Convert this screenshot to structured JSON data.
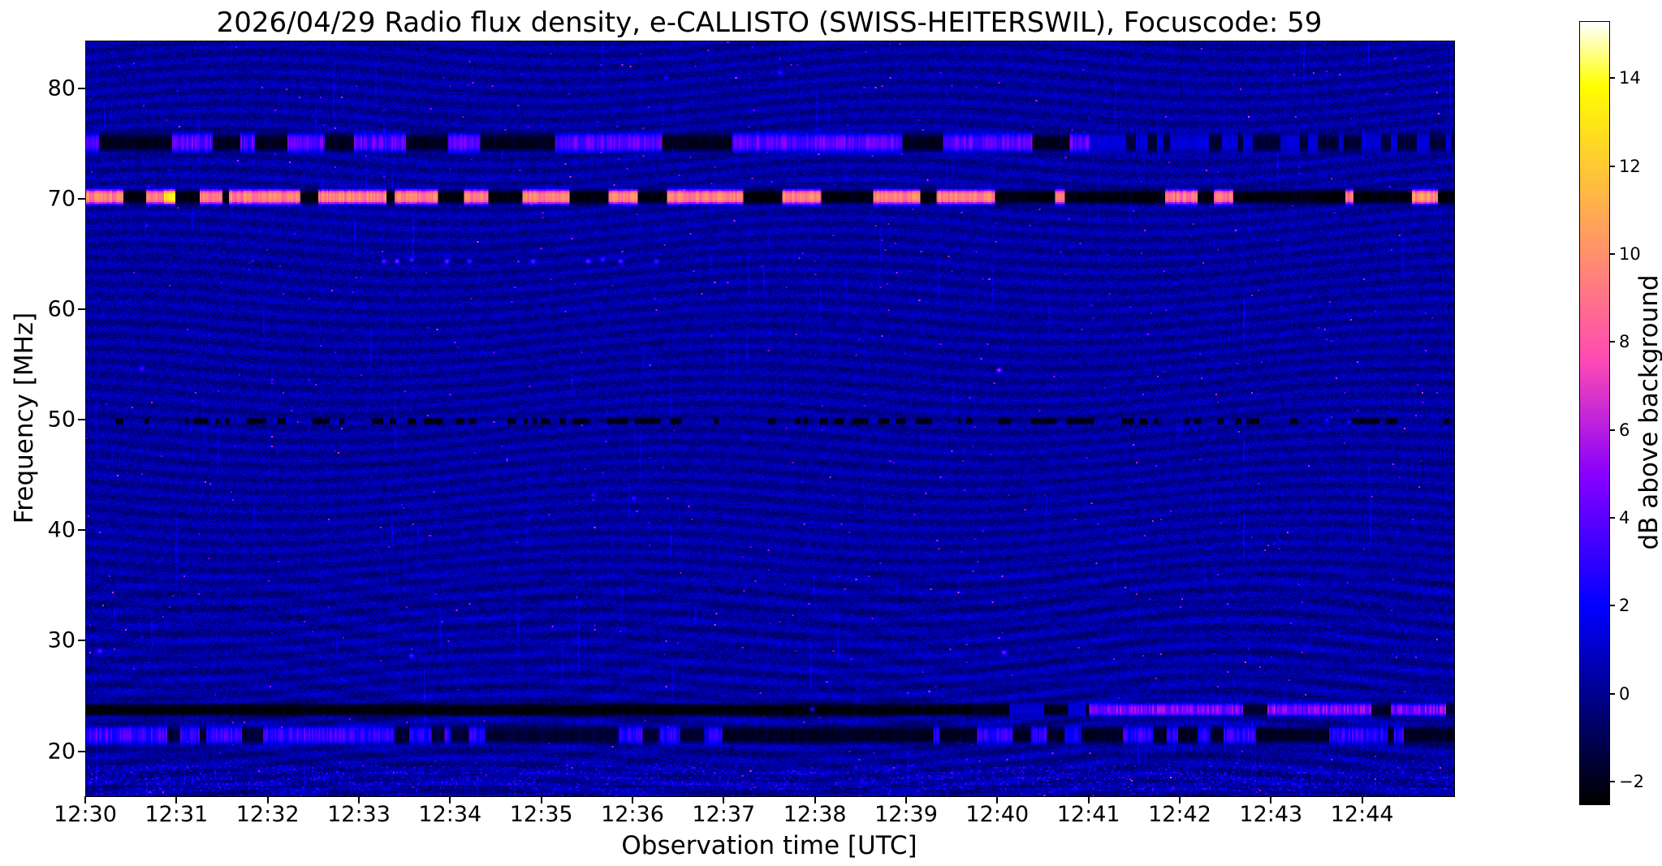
{
  "figure": {
    "title": "2026/04/29  Radio flux density, e-CALLISTO (SWISS-HEITERSWIL), Focuscode: 59",
    "date": "2026/04/29",
    "station": "SWISS-HEITERSWIL",
    "focuscode": "59",
    "xlabel": "Observation time [UTC]",
    "ylabel": "Frequency [MHz]",
    "colorbar_label": "dB above background"
  },
  "chart_data": {
    "type": "heatmap",
    "title": "2026/04/29  Radio flux density, e-CALLISTO (SWISS-HEITERSWIL), Focuscode: 59",
    "xlabel": "Observation time [UTC]",
    "ylabel": "Frequency [MHz]",
    "x_ticks": [
      "12:30",
      "12:31",
      "12:32",
      "12:33",
      "12:34",
      "12:35",
      "12:36",
      "12:37",
      "12:38",
      "12:39",
      "12:40",
      "12:41",
      "12:42",
      "12:43",
      "12:44"
    ],
    "x_range_minutes": [
      0,
      15
    ],
    "y_ticks": [
      80,
      70,
      60,
      50,
      40,
      30,
      20
    ],
    "y_range_mhz": [
      16,
      84.3
    ],
    "grid": false,
    "legend": false,
    "colorbar": {
      "label": "dB above background",
      "ticks": [
        14,
        12,
        10,
        8,
        6,
        4,
        2,
        0,
        -2
      ],
      "vmin": -2.5,
      "vmax": 15.3,
      "colormap": "gnuplot2"
    },
    "background_level_db": 0.25,
    "bands": [
      {
        "name": "75 MHz intermittent RFI band",
        "freq": 75.2,
        "halfwidth_mhz": 0.8,
        "zones": [
          {
            "t0": 0,
            "t1": 11,
            "p_on": 0.5,
            "on_db": 4.0,
            "off_db": -2.0,
            "seg": [
              4,
              26
            ]
          },
          {
            "t0": 11,
            "t1": 15,
            "p_on": 0.5,
            "on_db": 1.3,
            "off_db": -1.6,
            "seg": [
              2,
              7
            ]
          }
        ]
      },
      {
        "name": "70.3 MHz strong RFI carrier",
        "freq": 70.3,
        "halfwidth_mhz": 0.65,
        "zones": [
          {
            "t0": 0,
            "t1": 11,
            "p_on": 0.6,
            "on_db": 9.5,
            "off_db": -2.3,
            "seg": [
              4,
              24
            ],
            "p_flare": 0.06,
            "flare_db": 13.5
          },
          {
            "t0": 11,
            "t1": 14.55,
            "p_on": 0.08,
            "on_db": 9.0,
            "off_db": -2.3,
            "seg": [
              3,
              16
            ]
          },
          {
            "t0": 14.55,
            "t1": 15,
            "p_on": 0.8,
            "on_db": 10.0,
            "off_db": -2.3,
            "seg": [
              4,
              18
            ]
          }
        ]
      },
      {
        "name": "50 MHz dashed dark line",
        "freq": 50.0,
        "halfwidth_mhz": 0.28,
        "zones": [
          {
            "t0": 0,
            "t1": 15,
            "p_on": 0.38,
            "on_db": -2.2,
            "off_db": null,
            "seg": [
              2,
              6
            ]
          }
        ]
      },
      {
        "name": "24 MHz band, dark then magenta after 12:41",
        "freq": 23.9,
        "halfwidth_mhz": 0.55,
        "zones": [
          {
            "t0": 0,
            "t1": 9.7,
            "p_on": 0.97,
            "on_db": -2.4,
            "off_db": -0.6,
            "seg": [
              20,
              60
            ]
          },
          {
            "t0": 9.7,
            "t1": 11,
            "p_on": 0.55,
            "on_db": -2.2,
            "off_db": 1.2,
            "seg": [
              4,
              12
            ]
          },
          {
            "t0": 11,
            "t1": 15,
            "p_on": 0.75,
            "on_db": 4.8,
            "off_db": -1.8,
            "seg": [
              5,
              20
            ]
          }
        ]
      },
      {
        "name": "21.6 MHz intermittent blue band",
        "freq": 21.6,
        "halfwidth_mhz": 0.75,
        "zones": [
          {
            "t0": 0,
            "t1": 3.6,
            "p_on": 0.75,
            "on_db": 3.2,
            "off_db": -1.6,
            "seg": [
              3,
              16
            ]
          },
          {
            "t0": 3.6,
            "t1": 7,
            "p_on": 0.55,
            "on_db": 2.6,
            "off_db": -1.6,
            "seg": [
              3,
              13
            ]
          },
          {
            "t0": 7,
            "t1": 9.3,
            "p_on": 0.25,
            "on_db": 2.2,
            "off_db": -1.9,
            "seg": [
              4,
              15
            ]
          },
          {
            "t0": 9.3,
            "t1": 15,
            "p_on": 0.5,
            "on_db": 2.8,
            "off_db": -1.9,
            "seg": [
              3,
              13
            ]
          }
        ]
      },
      {
        "name": "17.6 MHz speckle band",
        "freq": 17.6,
        "halfwidth_mhz": 1.3,
        "kind": "speckle",
        "density": 0.28,
        "on_db": 1.9
      }
    ],
    "point_events": [
      {
        "t": 3.25,
        "f": 64.5,
        "db": 5.0
      },
      {
        "t": 3.4,
        "f": 64.4,
        "db": 6.0
      },
      {
        "t": 3.55,
        "f": 64.6,
        "db": 4.5
      },
      {
        "t": 3.95,
        "f": 64.4,
        "db": 5.5
      },
      {
        "t": 4.2,
        "f": 64.5,
        "db": 4.5
      },
      {
        "t": 4.9,
        "f": 64.5,
        "db": 5.0
      },
      {
        "t": 5.5,
        "f": 64.4,
        "db": 5.5
      },
      {
        "t": 5.65,
        "f": 64.6,
        "db": 4.5
      },
      {
        "t": 5.85,
        "f": 64.5,
        "db": 5.0
      },
      {
        "t": 6.25,
        "f": 64.4,
        "db": 4.0
      },
      {
        "t": 0.6,
        "f": 54.8,
        "db": 4.0
      },
      {
        "t": 10.0,
        "f": 54.6,
        "db": 7.0
      },
      {
        "t": 6.0,
        "f": 43.0,
        "db": 3.5
      },
      {
        "t": 5.55,
        "f": 43.3,
        "db": 3.0
      },
      {
        "t": 0.15,
        "f": 29.2,
        "db": 4.5
      },
      {
        "t": 3.55,
        "f": 28.8,
        "db": 4.5
      },
      {
        "t": 10.05,
        "f": 29.0,
        "db": 5.5
      },
      {
        "t": 7.95,
        "f": 23.9,
        "db": 3.0
      },
      {
        "t": 13.6,
        "f": 50.1,
        "db": 3.0
      },
      {
        "t": 13.85,
        "f": 50.0,
        "db": 3.0
      },
      {
        "t": 7.6,
        "f": 81.5,
        "db": 3.5
      },
      {
        "t": 6.35,
        "f": 81.0,
        "db": 3.0
      }
    ]
  }
}
